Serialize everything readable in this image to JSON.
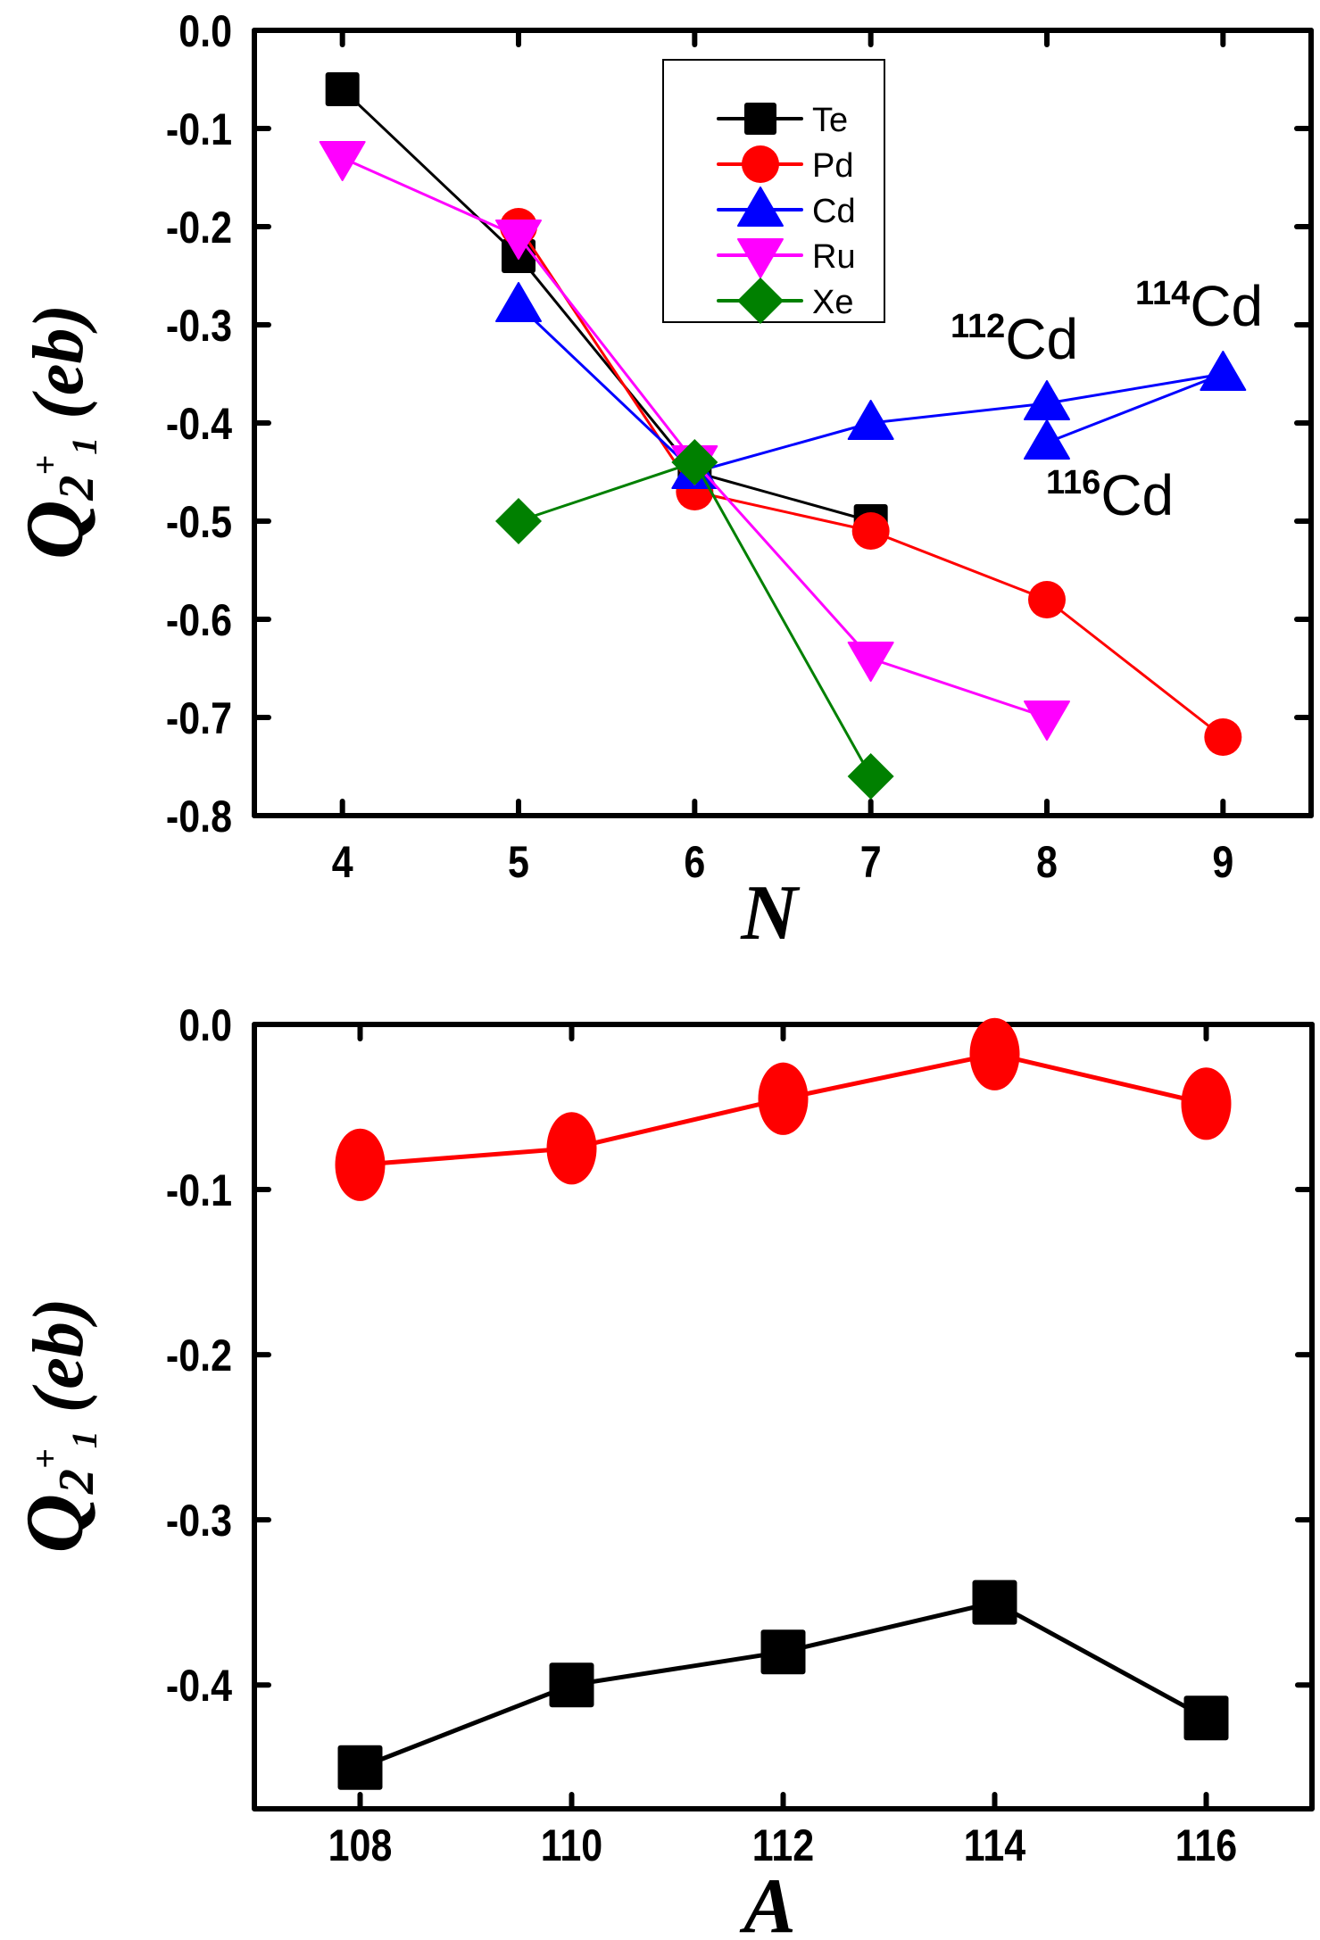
{
  "chart_data": [
    {
      "type": "line",
      "xlabel": "N",
      "ylabel": {
        "symbol": "Q",
        "sub": "2",
        "sup": "+",
        "subsub": "1",
        "unit": "(eb)"
      },
      "xlim": [
        3.5,
        9.5
      ],
      "ylim": [
        -0.8,
        0.0
      ],
      "xticks": [
        4,
        5,
        6,
        7,
        8,
        9
      ],
      "xtick_labels": [
        "4",
        "5",
        "6",
        "7",
        "8",
        "9"
      ],
      "yticks": [
        0.0,
        -0.1,
        -0.2,
        -0.3,
        -0.4,
        -0.5,
        -0.6,
        -0.7,
        -0.8
      ],
      "ytick_labels": [
        "0.0",
        "-0.1",
        "-0.2",
        "-0.3",
        "-0.4",
        "-0.5",
        "-0.6",
        "-0.7",
        "-0.8"
      ],
      "grid": false,
      "legend_position": "top-center",
      "series": [
        {
          "name": "Te",
          "color": "#000000",
          "marker": "square",
          "points": [
            [
              4,
              -0.06
            ],
            [
              5,
              -0.23
            ],
            [
              6,
              -0.45
            ],
            [
              7,
              -0.5
            ]
          ]
        },
        {
          "name": "Pd",
          "color": "#ff0000",
          "marker": "circle",
          "points": [
            [
              5,
              -0.2
            ],
            [
              6,
              -0.47
            ],
            [
              7,
              -0.51
            ],
            [
              8,
              -0.58
            ],
            [
              9,
              -0.72
            ]
          ]
        },
        {
          "name": "Cd",
          "color": "#0000ff",
          "marker": "triangle-up",
          "points": [
            [
              5,
              -0.28
            ],
            [
              6,
              -0.45
            ],
            [
              7,
              -0.4
            ],
            [
              8,
              -0.38
            ],
            [
              9,
              -0.35
            ],
            [
              8,
              -0.42
            ]
          ]
        },
        {
          "name": "Ru",
          "color": "#ff00ff",
          "marker": "triangle-down",
          "points": [
            [
              4,
              -0.13
            ],
            [
              5,
              -0.21
            ],
            [
              6,
              -0.44
            ],
            [
              7,
              -0.64
            ],
            [
              8,
              -0.7
            ]
          ]
        },
        {
          "name": "Xe",
          "color": "#008000",
          "marker": "diamond",
          "points": [
            [
              5,
              -0.5
            ],
            [
              6,
              -0.44
            ],
            [
              7,
              -0.76
            ]
          ]
        }
      ],
      "annotations": [
        {
          "mass": "112",
          "element": "Cd",
          "x": 8,
          "y": -0.38
        },
        {
          "mass": "114",
          "element": "Cd",
          "x": 9,
          "y": -0.35
        },
        {
          "mass": "116",
          "element": "Cd",
          "x": 8,
          "y": -0.42
        }
      ]
    },
    {
      "type": "line",
      "xlabel": "A",
      "ylabel": {
        "symbol": "Q",
        "sub": "2",
        "sup": "+",
        "subsub": "1",
        "unit": "(eb)"
      },
      "xlim": [
        107,
        117
      ],
      "ylim": [
        -0.475,
        0.0
      ],
      "xticks": [
        108,
        110,
        112,
        114,
        116
      ],
      "xtick_labels": [
        "108",
        "110",
        "112",
        "114",
        "116"
      ],
      "yticks": [
        0.0,
        -0.1,
        -0.2,
        -0.3,
        -0.4
      ],
      "ytick_labels": [
        "0.0",
        "-0.1",
        "-0.2",
        "-0.3",
        "-0.4"
      ],
      "grid": false,
      "series": [
        {
          "name": "Pd",
          "color": "#ff0000",
          "marker": "circle",
          "points": [
            [
              108,
              -0.085
            ],
            [
              110,
              -0.075
            ],
            [
              112,
              -0.045
            ],
            [
              114,
              -0.018
            ],
            [
              116,
              -0.048
            ]
          ]
        },
        {
          "name": "Te",
          "color": "#000000",
          "marker": "square",
          "points": [
            [
              108,
              -0.45
            ],
            [
              110,
              -0.4
            ],
            [
              112,
              -0.38
            ],
            [
              114,
              -0.35
            ],
            [
              116,
              -0.42
            ]
          ]
        }
      ]
    }
  ]
}
